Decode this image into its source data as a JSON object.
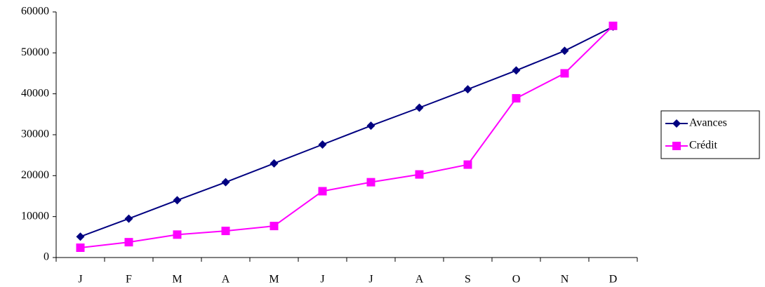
{
  "chart_data": {
    "type": "line",
    "categories": [
      "J",
      "F",
      "M",
      "A",
      "M",
      "J",
      "J",
      "A",
      "S",
      "O",
      "N",
      "D"
    ],
    "series": [
      {
        "name": "Avances",
        "color": "#000080",
        "marker": "diamond",
        "values": [
          5100,
          9500,
          14000,
          18400,
          23000,
          27600,
          32200,
          36600,
          41100,
          45700,
          50500,
          56400
        ]
      },
      {
        "name": "Crédit",
        "color": "#ff00ff",
        "marker": "square",
        "values": [
          2400,
          3750,
          5600,
          6500,
          7700,
          16200,
          18400,
          20300,
          22700,
          38900,
          45000,
          56600
        ]
      }
    ],
    "ylim": [
      0,
      60000
    ],
    "yticks": [
      0,
      10000,
      20000,
      30000,
      40000,
      50000,
      60000
    ],
    "grid": false,
    "legend": "right"
  }
}
